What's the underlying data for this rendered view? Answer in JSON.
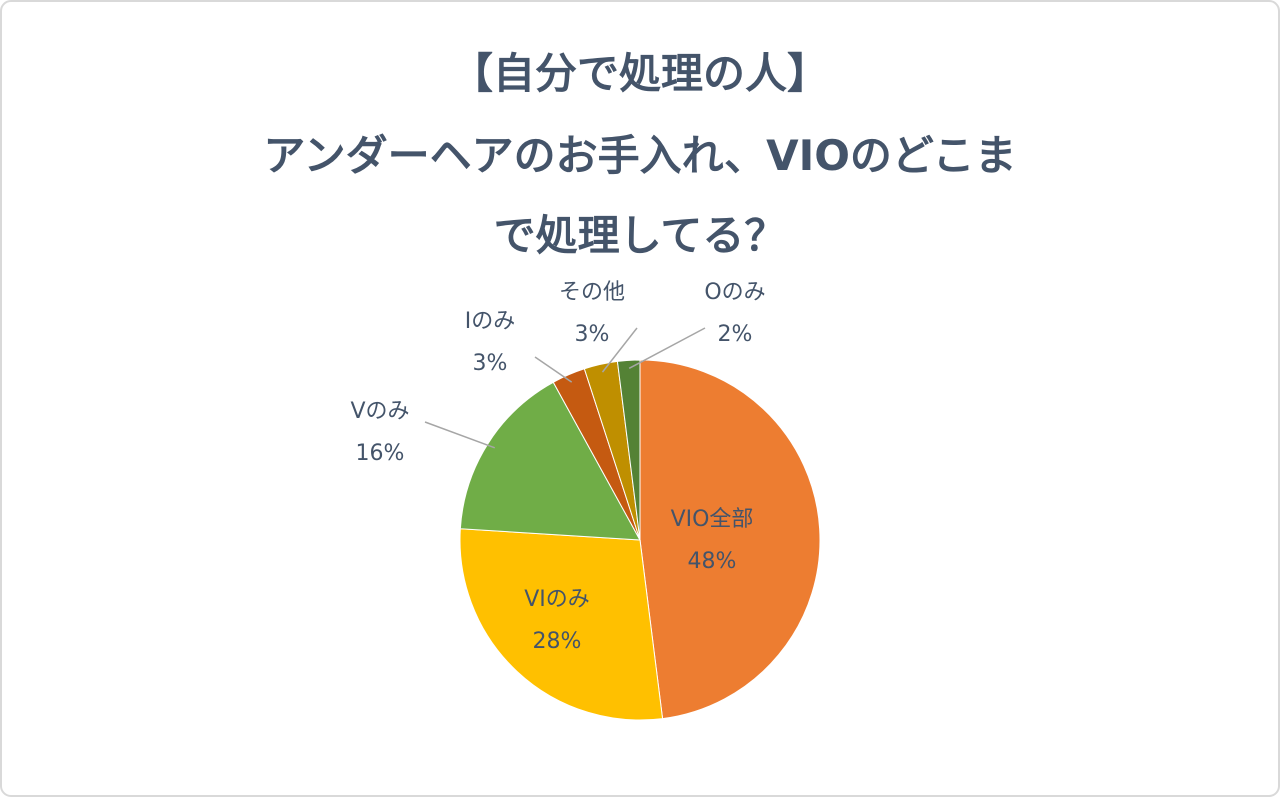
{
  "chart_data": {
    "type": "pie",
    "title": [
      "【自分で処理の人】",
      "アンダーヘアのお手入れ、VIOのどこま",
      "で処理してる？"
    ],
    "categories": [
      "VIO全部",
      "VIのみ",
      "Vのみ",
      "Iのみ",
      "その他",
      "Oのみ"
    ],
    "values": [
      48,
      28,
      16,
      3,
      3,
      2
    ],
    "value_labels": [
      "48%",
      "28%",
      "16%",
      "3%",
      "3%",
      "2%"
    ],
    "colors": [
      "#ED7D31",
      "#FFC000",
      "#70AD47",
      "#C55A11",
      "#BF8F00",
      "#548235"
    ]
  }
}
